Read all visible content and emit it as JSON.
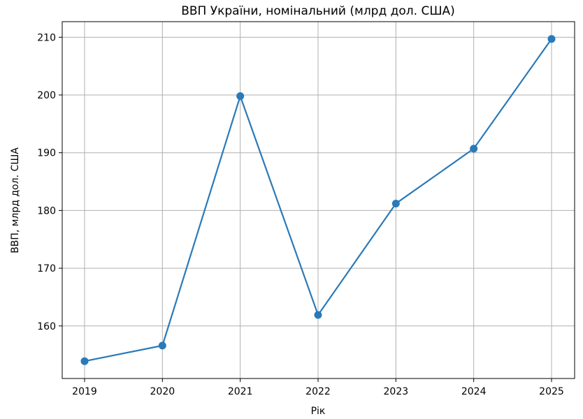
{
  "chart_data": {
    "type": "line",
    "title": "ВВП України, номінальний (млрд дол. США)",
    "xlabel": "Рік",
    "ylabel": "ВВП, млрд дол. США",
    "x": [
      "2019",
      "2020",
      "2021",
      "2022",
      "2023",
      "2024",
      "2025"
    ],
    "series": [
      {
        "values": [
          153.9,
          156.6,
          199.8,
          161.9,
          181.2,
          190.7,
          209.7
        ]
      }
    ],
    "yticks": [
      160,
      170,
      180,
      190,
      200,
      210
    ],
    "ylim": [
      150.9,
      212.7
    ],
    "grid": true,
    "color": "#2a7ab9"
  }
}
